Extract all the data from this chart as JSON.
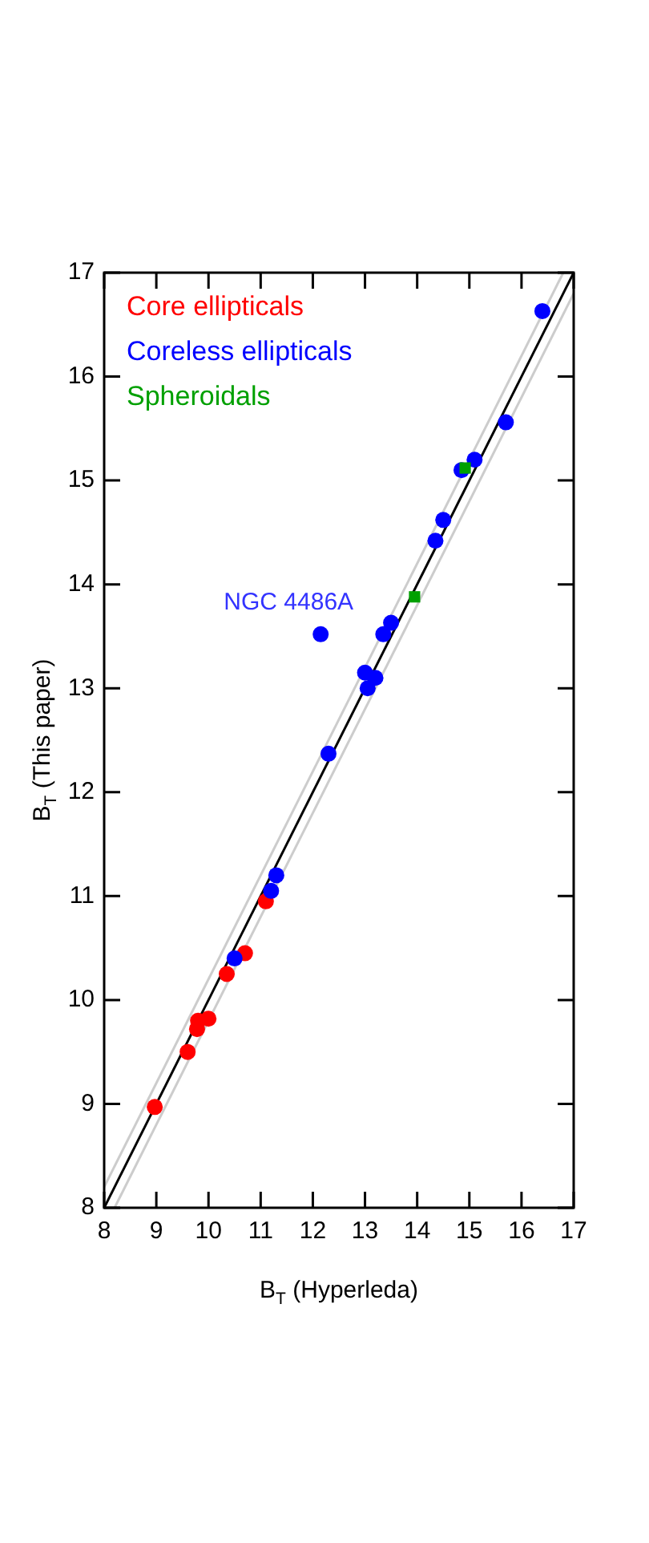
{
  "chart_data": {
    "type": "scatter",
    "xlabel": "B$_{T}$ (Hyperleda)",
    "ylabel": "B$_{T}$ (This paper)",
    "xlim": [
      8,
      17
    ],
    "ylim": [
      8,
      17
    ],
    "xticks": [
      8,
      9,
      10,
      11,
      12,
      13,
      14,
      15,
      16,
      17
    ],
    "yticks": [
      8,
      9,
      10,
      11,
      12,
      13,
      14,
      15,
      16,
      17
    ],
    "grid": false,
    "legend": "top left",
    "annotations": [
      {
        "text": "NGC 4486A",
        "x": 12.15,
        "y": 13.52
      }
    ],
    "series": [
      {
        "type": "line",
        "color": "#cccccc",
        "marker": "none",
        "x": [
          8,
          16.8
        ],
        "values": [
          8.2,
          17
        ]
      },
      {
        "type": "line",
        "color": "#cccccc",
        "marker": "none",
        "x": [
          8.2,
          17
        ],
        "values": [
          8,
          16.8
        ]
      },
      {
        "type": "line",
        "color": "#000000",
        "marker": "none",
        "x": [
          8,
          17
        ],
        "values": [
          8,
          17
        ]
      },
      {
        "name": "Core ellipticals",
        "color": "#ff0000",
        "marker": "circle",
        "x": [
          8.97,
          9.6,
          9.78,
          9.8,
          10.0,
          10.35,
          10.7,
          11.1
        ],
        "values": [
          8.97,
          9.5,
          9.72,
          9.8,
          9.82,
          10.25,
          10.45,
          10.95
        ]
      },
      {
        "name": "Coreless ellipticals",
        "color": "#0000ff",
        "marker": "circle",
        "x": [
          10.5,
          11.2,
          11.3,
          12.3,
          12.15,
          13.0,
          13.05,
          13.2,
          13.35,
          13.5,
          14.35,
          14.5,
          14.85,
          15.1,
          15.7,
          16.4
        ],
        "values": [
          10.4,
          11.05,
          11.2,
          12.37,
          13.52,
          13.15,
          13.0,
          13.1,
          13.52,
          13.63,
          14.42,
          14.62,
          15.1,
          15.2,
          15.56,
          16.63
        ]
      },
      {
        "name": "Spheroidals",
        "color": "#00a000",
        "marker": "square",
        "x": [
          13.95,
          14.92
        ],
        "values": [
          13.88,
          15.12
        ]
      }
    ]
  }
}
